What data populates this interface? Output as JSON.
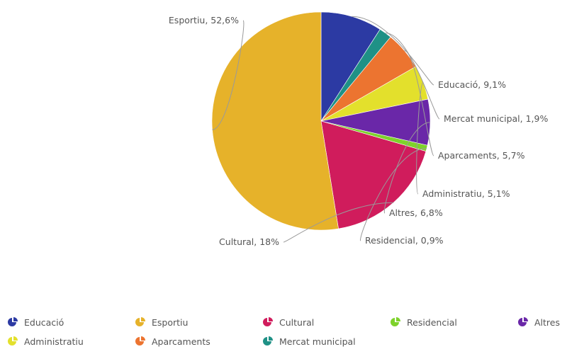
{
  "chart_data": {
    "type": "pie",
    "title": "",
    "slices": [
      {
        "name": "Educació",
        "value": 9.1,
        "label": "Educació, 9,1%",
        "color": "#2c3aa3"
      },
      {
        "name": "Mercat municipal",
        "value": 1.9,
        "label": "Mercat municipal, 1,9%",
        "color": "#1f9186"
      },
      {
        "name": "Aparcaments",
        "value": 5.7,
        "label": "Aparcaments, 5,7%",
        "color": "#ec7430"
      },
      {
        "name": "Administratiu",
        "value": 5.1,
        "label": "Administratiu, 5,1%",
        "color": "#e3e02c"
      },
      {
        "name": "Altres",
        "value": 6.8,
        "label": "Altres, 6,8%",
        "color": "#6a27a8"
      },
      {
        "name": "Residencial",
        "value": 0.9,
        "label": "Residencial, 0,9%",
        "color": "#7ed22b"
      },
      {
        "name": "Cultural",
        "value": 18,
        "label": "Cultural, 18%",
        "color": "#d01c5c"
      },
      {
        "name": "Esportiu",
        "value": 52.6,
        "label": "Esportiu, 52,6%",
        "color": "#e6b22a"
      }
    ],
    "start_angle_deg": 90,
    "direction": "clockwise",
    "legend": {
      "placement": "bottom",
      "items": [
        "Educació",
        "Esportiu",
        "Cultural",
        "Residencial",
        "Altres",
        "Administratiu",
        "Aparcaments",
        "Mercat municipal"
      ]
    }
  }
}
